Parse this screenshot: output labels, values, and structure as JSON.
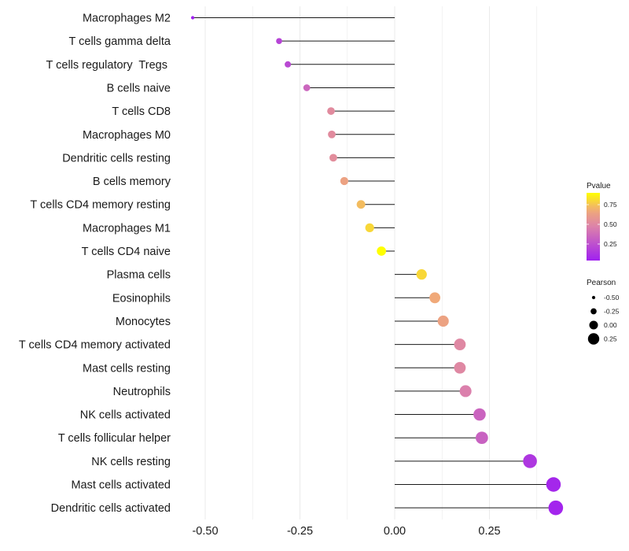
{
  "chart_data": {
    "type": "lollipop",
    "title": "",
    "xlabel": "",
    "ylabel": "",
    "xlim": [
      -0.55,
      0.44
    ],
    "x_ticks": [
      -0.5,
      -0.25,
      0.0,
      0.25
    ],
    "x_tick_labels": [
      "-0.50",
      "-0.25",
      "0.00",
      "0.25"
    ],
    "grid": true,
    "categories": [
      "Macrophages M2",
      "T cells gamma delta",
      "T cells regulatory  Tregs ",
      "B cells naive",
      "T cells CD8",
      "Macrophages M0",
      "Dendritic cells resting",
      "B cells memory",
      "T cells CD4 memory resting",
      "Macrophages M1",
      "T cells CD4 naive",
      "Plasma cells",
      "Eosinophils",
      "Monocytes",
      "T cells CD4 memory activated",
      "Mast cells resting",
      "Neutrophils",
      "NK cells activated",
      "T cells follicular helper",
      "NK cells resting",
      "Mast cells activated",
      "Dendritic cells activated"
    ],
    "pearson": [
      -0.533,
      -0.305,
      -0.282,
      -0.232,
      -0.168,
      -0.166,
      -0.162,
      -0.133,
      -0.089,
      -0.066,
      -0.035,
      0.071,
      0.106,
      0.128,
      0.172,
      0.172,
      0.187,
      0.224,
      0.23,
      0.357,
      0.419,
      0.425
    ],
    "pvalue": [
      0.04,
      0.2,
      0.22,
      0.35,
      0.52,
      0.52,
      0.53,
      0.64,
      0.73,
      0.8,
      0.9,
      0.8,
      0.68,
      0.64,
      0.5,
      0.5,
      0.46,
      0.34,
      0.33,
      0.14,
      0.07,
      0.06
    ],
    "color_legend": {
      "title": "Pvalue",
      "ticks": [
        0.25,
        0.5,
        0.75
      ],
      "tick_labels": [
        "0.25",
        "0.50",
        "0.75"
      ],
      "range": [
        0.04,
        0.9
      ],
      "low_color": "#A020F0",
      "high_color": "#FFFF00",
      "placement": "right"
    },
    "size_legend": {
      "title": "Pearson",
      "values": [
        -0.5,
        -0.25,
        0.0,
        0.25
      ],
      "labels": [
        "-0.50",
        "-0.25",
        "0.00",
        "0.25"
      ],
      "placement": "right"
    }
  }
}
